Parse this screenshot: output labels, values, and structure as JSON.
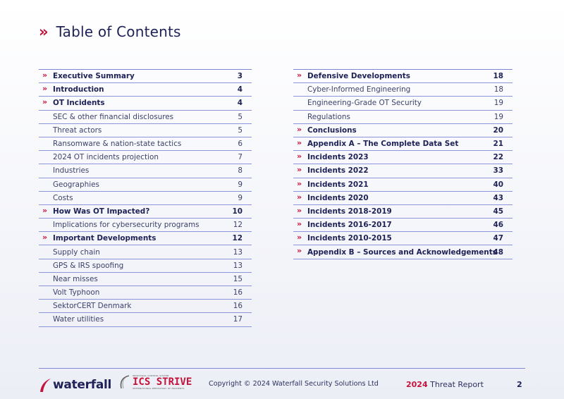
{
  "header": {
    "title": "Table of Contents",
    "chevron": "»"
  },
  "toc_left": [
    {
      "label": "Executive Summary",
      "page": "3",
      "main": true
    },
    {
      "label": "Introduction",
      "page": "4",
      "main": true
    },
    {
      "label": "OT Incidents",
      "page": "4",
      "main": true
    },
    {
      "label": "SEC & other financial disclosures",
      "page": "5",
      "main": false
    },
    {
      "label": "Threat actors",
      "page": "5",
      "main": false
    },
    {
      "label": "Ransomware & nation-state tactics",
      "page": "6",
      "main": false
    },
    {
      "label": "2024 OT incidents projection",
      "page": "7",
      "main": false
    },
    {
      "label": "Industries",
      "page": "8",
      "main": false
    },
    {
      "label": "Geographies",
      "page": "9",
      "main": false
    },
    {
      "label": "Costs",
      "page": "9",
      "main": false
    },
    {
      "label": "How Was OT Impacted?",
      "page": "10",
      "main": true
    },
    {
      "label": "Implications for cybersecurity programs",
      "page": "12",
      "main": false
    },
    {
      "label": "Important Developments",
      "page": "12",
      "main": true
    },
    {
      "label": "Supply chain",
      "page": "13",
      "main": false
    },
    {
      "label": "GPS & IRS spoofing",
      "page": "13",
      "main": false
    },
    {
      "label": "Near misses",
      "page": "15",
      "main": false
    },
    {
      "label": "Volt Typhoon",
      "page": "16",
      "main": false
    },
    {
      "label": "SektorCERT Denmark",
      "page": "16",
      "main": false
    },
    {
      "label": "Water utilities",
      "page": "17",
      "main": false
    }
  ],
  "toc_right": [
    {
      "label": "Defensive Developments",
      "page": "18",
      "main": true
    },
    {
      "label": "Cyber-Informed Engineering",
      "page": "18",
      "main": false
    },
    {
      "label": "Engineering-Grade OT Security",
      "page": "19",
      "main": false
    },
    {
      "label": "Regulations",
      "page": "19",
      "main": false
    },
    {
      "label": "Conclusions",
      "page": "20",
      "main": true
    },
    {
      "label": "Appendix A – The Complete Data Set",
      "page": "21",
      "main": true
    },
    {
      "label": "Incidents 2023",
      "page": "22",
      "main": true
    },
    {
      "label": "Incidents 2022",
      "page": "33",
      "main": true
    },
    {
      "label": "Incidents 2021",
      "page": "40",
      "main": true
    },
    {
      "label": "Incidents 2020",
      "page": "43",
      "main": true
    },
    {
      "label": "Incidents 2018-2019",
      "page": "45",
      "main": true
    },
    {
      "label": "Incidents 2016-2017",
      "page": "46",
      "main": true
    },
    {
      "label": "Incidents 2010-2015",
      "page": "47",
      "main": true
    },
    {
      "label": "Appendix B – Sources and Acknowledgements",
      "page": "48",
      "main": true
    }
  ],
  "footer": {
    "logo_text": "waterfall",
    "ics_logo_top": "INDUSTRIAL CONTROL SYSTEM",
    "ics_logo_main": "ICS STRIVE",
    "ics_logo_bottom": "INTERNATIONAL REPOSITORY OF INCIDENTS",
    "copyright": "Copyright © 2024 Waterfall Security Solutions Ltd",
    "report_year": "2024",
    "report_label": "Threat Report",
    "page_number": "2"
  },
  "colors": {
    "accent_red": "#c4143c",
    "navy": "#1e2257",
    "rule": "#8c95d9"
  }
}
